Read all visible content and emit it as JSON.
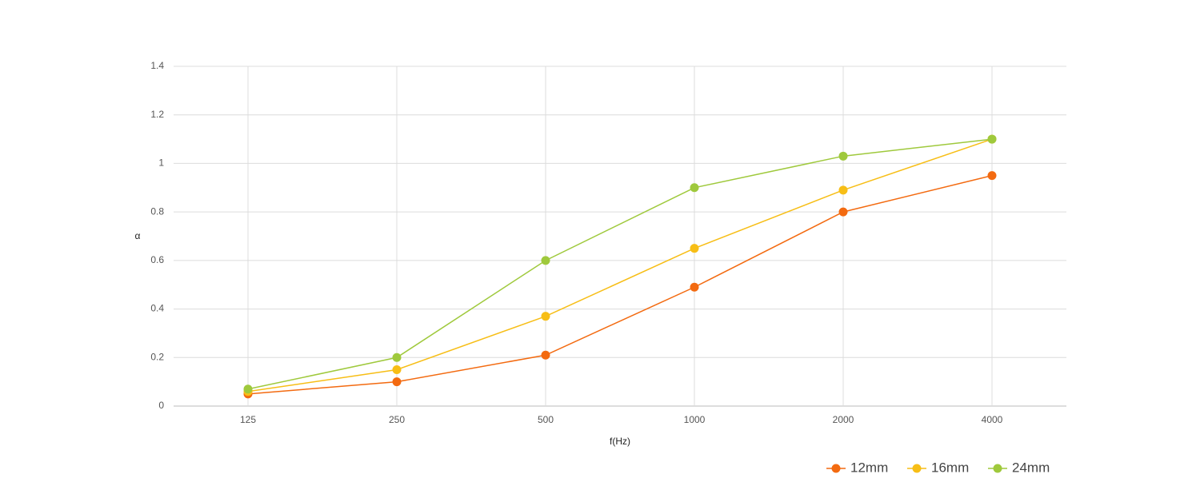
{
  "chart_data": {
    "type": "line",
    "x_label": "f(Hz)",
    "y_label": "α",
    "categories": [
      "125",
      "250",
      "500",
      "1000",
      "2000",
      "4000"
    ],
    "series": [
      {
        "name": "12mm",
        "color": "#f36a10",
        "values": [
          0.05,
          0.1,
          0.21,
          0.49,
          0.8,
          0.95
        ]
      },
      {
        "name": "16mm",
        "color": "#f7be16",
        "values": [
          0.06,
          0.15,
          0.37,
          0.65,
          0.89,
          1.1
        ]
      },
      {
        "name": "24mm",
        "color": "#9fc93c",
        "values": [
          0.07,
          0.2,
          0.6,
          0.9,
          1.03,
          1.1
        ]
      }
    ],
    "ylim": [
      0,
      1.4
    ],
    "yticks": [
      0,
      0.2,
      0.4,
      0.6,
      0.8,
      1,
      1.2,
      1.4
    ],
    "grid": true,
    "legend": "bottom-right"
  }
}
